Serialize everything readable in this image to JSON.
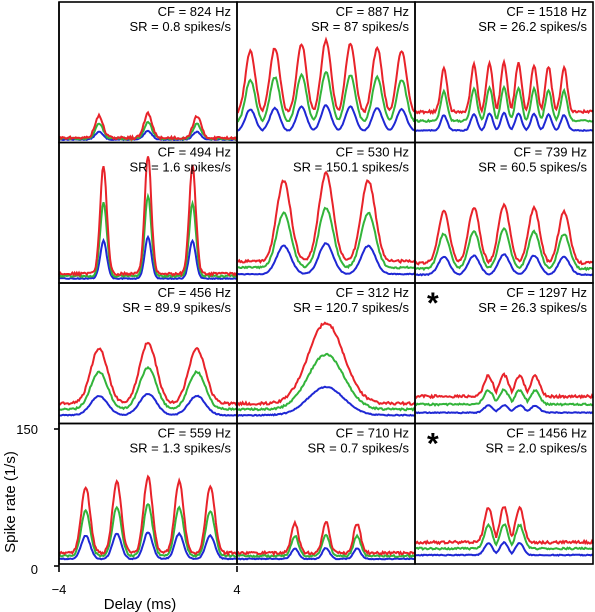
{
  "chart_data": {
    "type": "line",
    "layout": "4x3 grid of small-multiple panels",
    "xlabel": "Delay (ms)",
    "ylabel": "Spike rate (1/s)",
    "xlim": [
      -4,
      4
    ],
    "xticks": [
      "−4",
      "4"
    ],
    "ylim": [
      0,
      150
    ],
    "yticks": [
      "0",
      "150"
    ],
    "colors": {
      "top": "#e8232a",
      "middle": "#33b43a",
      "bottom": "#1f28d4",
      "frame": "#000000"
    },
    "panels": [
      {
        "cf": "CF = 824 Hz",
        "sr": "SR = 0.8 spikes/s",
        "star": "",
        "peaks": [
          -2.2,
          0,
          2.2
        ],
        "baseline": 3,
        "peak_max": 30,
        "width": 0.18
      },
      {
        "cf": "CF = 887 Hz",
        "sr": "SR = 87 spikes/s",
        "star": "",
        "peaks": [
          -3.4,
          -2.3,
          -1.1,
          0,
          1.1,
          2.3,
          3.4
        ],
        "baseline": 30,
        "peak_max": 112,
        "width": 0.22
      },
      {
        "cf": "CF = 1518 Hz",
        "sr": "SR = 26.2 spikes/s",
        "star": "",
        "peaks": [
          -2.7,
          -1.35,
          -0.65,
          0,
          0.65,
          1.35,
          2.0,
          2.7
        ],
        "baseline": 32,
        "peak_max": 88,
        "width": 0.14
      },
      {
        "cf": "CF = 494 Hz",
        "sr": "SR = 1.6 spikes/s",
        "star": "",
        "peaks": [
          -2.0,
          0,
          2.0
        ],
        "baseline": 8,
        "peak_max": 140,
        "width": 0.15
      },
      {
        "cf": "CF = 530 Hz",
        "sr": "SR = 150.1 spikes/s",
        "star": "",
        "peaks": [
          -1.9,
          0,
          1.9
        ],
        "baseline": 22,
        "peak_max": 120,
        "width": 0.32
      },
      {
        "cf": "CF = 739 Hz",
        "sr": "SR = 60.5 spikes/s",
        "star": "",
        "peaks": [
          -2.7,
          -1.35,
          0,
          1.35,
          2.7
        ],
        "baseline": 20,
        "peak_max": 85,
        "width": 0.25
      },
      {
        "cf": "CF = 456 Hz",
        "sr": "SR = 89.9 spikes/s",
        "star": "",
        "peaks": [
          -2.2,
          0,
          2.2
        ],
        "baseline": 20,
        "peak_max": 88,
        "width": 0.38
      },
      {
        "cf": "CF = 312 Hz",
        "sr": "SR = 120.7 spikes/s",
        "star": "",
        "peaks": [
          0
        ],
        "baseline": 20,
        "peak_max": 110,
        "width": 0.8
      },
      {
        "cf": "CF = 1297 Hz",
        "sr": "SR = 26.3 spikes/s",
        "star": "*",
        "peaks": [
          -0.7,
          0,
          0.7,
          1.4
        ],
        "baseline": 28,
        "peak_max": 52,
        "width": 0.2
      },
      {
        "cf": "CF = 559 Hz",
        "sr": "SR = 1.3 spikes/s",
        "star": "",
        "peaks": [
          -2.8,
          -1.4,
          0,
          1.4,
          2.8
        ],
        "baseline": 10,
        "peak_max": 95,
        "width": 0.2
      },
      {
        "cf": "CF = 710 Hz",
        "sr": "SR = 0.7 spikes/s",
        "star": "",
        "peaks": [
          -1.4,
          0,
          1.4
        ],
        "baseline": 10,
        "peak_max": 45,
        "width": 0.16
      },
      {
        "cf": "CF = 1456 Hz",
        "sr": "SR = 2.0 spikes/s",
        "star": "*",
        "peaks": [
          -0.7,
          0,
          0.7
        ],
        "baseline": 22,
        "peak_max": 62,
        "width": 0.18
      }
    ]
  }
}
